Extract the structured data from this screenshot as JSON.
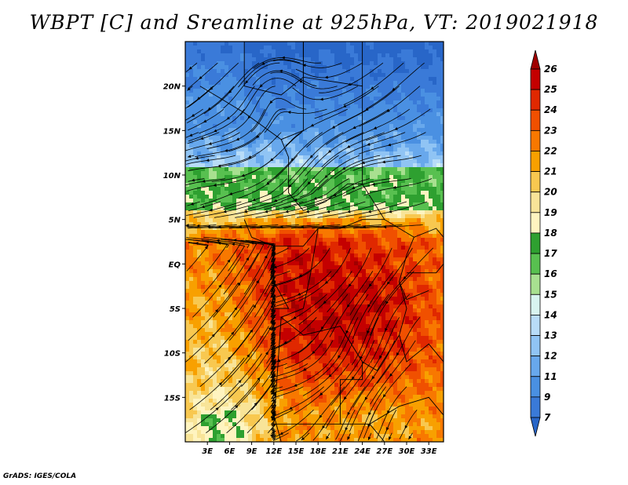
{
  "title": "WBPT [C] and Sreamline at 925hPa, VT: 2019021918",
  "credit": "GrADS: IGES/COLA",
  "map": {
    "lon_range": [
      0,
      35
    ],
    "lat_range": [
      -20,
      25
    ],
    "x_ticks": [
      {
        "lon": 3,
        "label": "3E"
      },
      {
        "lon": 6,
        "label": "6E"
      },
      {
        "lon": 9,
        "label": "9E"
      },
      {
        "lon": 12,
        "label": "12E"
      },
      {
        "lon": 15,
        "label": "15E"
      },
      {
        "lon": 18,
        "label": "18E"
      },
      {
        "lon": 21,
        "label": "21E"
      },
      {
        "lon": 24,
        "label": "24E"
      },
      {
        "lon": 27,
        "label": "27E"
      },
      {
        "lon": 30,
        "label": "30E"
      },
      {
        "lon": 33,
        "label": "33E"
      }
    ],
    "y_ticks": [
      {
        "lat": 20,
        "label": "20N"
      },
      {
        "lat": 15,
        "label": "15N"
      },
      {
        "lat": 10,
        "label": "10N"
      },
      {
        "lat": 5,
        "label": "5N"
      },
      {
        "lat": 0,
        "label": "EQ"
      },
      {
        "lat": -5,
        "label": "5S"
      },
      {
        "lat": -10,
        "label": "10S"
      },
      {
        "lat": -15,
        "label": "15S"
      }
    ]
  },
  "colorbar": {
    "levels": [
      "26",
      "25",
      "24",
      "23",
      "22",
      "21",
      "20",
      "19",
      "18",
      "17",
      "16",
      "15",
      "14",
      "13",
      "12",
      "11",
      "9",
      "7"
    ],
    "colors": [
      "#a00000",
      "#c40000",
      "#e02800",
      "#f05000",
      "#f87800",
      "#f8a000",
      "#f8c850",
      "#f8e498",
      "#fff4c0",
      "#2ea030",
      "#58c050",
      "#a8e090",
      "#d8f4f0",
      "#b8dcf8",
      "#90c4f4",
      "#68a8ec",
      "#4a90e2",
      "#3a7ad8",
      "#2866c8"
    ]
  },
  "chart_data": {
    "type": "heatmap",
    "title": "WBPT [C] and Sreamline at 925hPa, VT: 2019021918",
    "variable": "Wet-bulb potential temperature (C) with 925 hPa streamlines",
    "x_ticks": [
      "3E",
      "6E",
      "9E",
      "12E",
      "15E",
      "18E",
      "21E",
      "24E",
      "27E",
      "30E",
      "33E"
    ],
    "y_ticks": [
      "20N",
      "15N",
      "10N",
      "5N",
      "EQ",
      "5S",
      "10S",
      "15S"
    ],
    "xlim": [
      0,
      35
    ],
    "ylim": [
      -20,
      25
    ],
    "color_levels": [
      7,
      9,
      11,
      12,
      13,
      14,
      15,
      16,
      17,
      18,
      19,
      20,
      21,
      22,
      23,
      24,
      25,
      26
    ]
  }
}
